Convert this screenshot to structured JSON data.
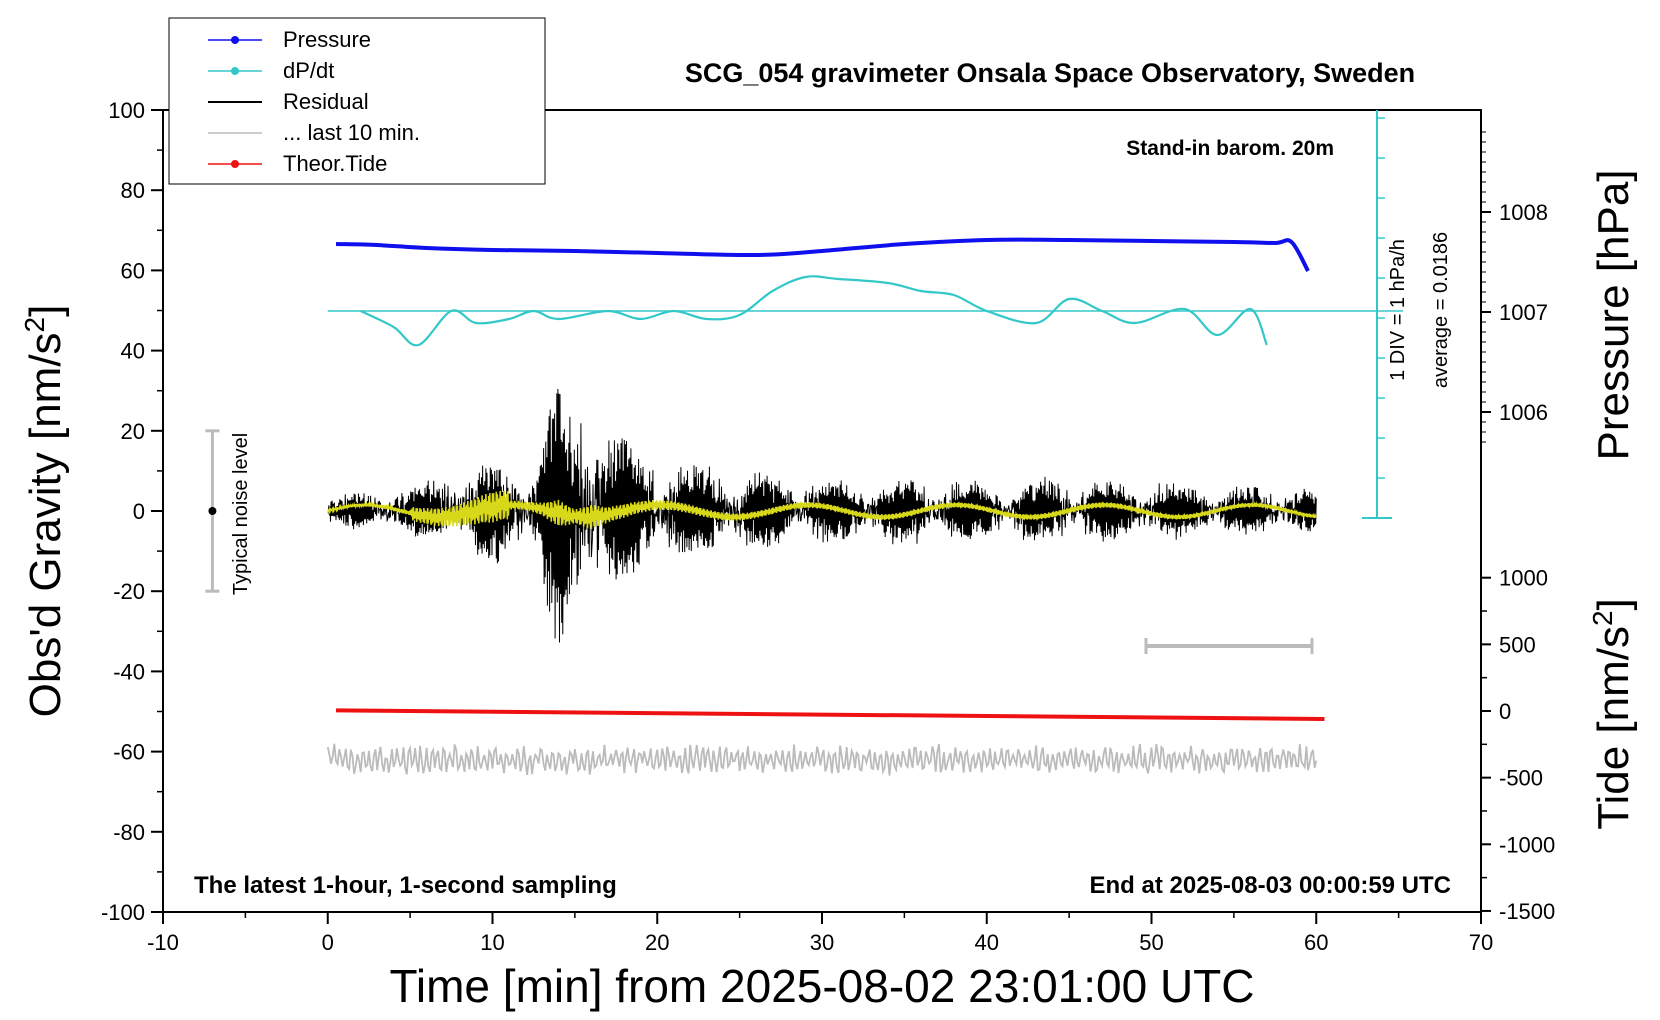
{
  "chart_data": {
    "type": "line",
    "title": "SCG_054 gravimeter Onsala Space Observatory, Sweden",
    "xlabel": "Time [min] from 2025-08-02 23:01:00 UTC",
    "ylabel_main": "Obs'd Gravity [nm/s",
    "ylabel_main_sup": "2",
    "ylabel_main_end": "]",
    "ylabel_pressure": "Pressure [hPa]",
    "ylabel_tide": "Tide [nm/s",
    "ylabel_tide_sup": "2",
    "ylabel_tide_end": "]",
    "xlim": [
      -10,
      70
    ],
    "ylim": [
      -100,
      100
    ],
    "x_ticks": [
      "-10",
      "0",
      "10",
      "20",
      "30",
      "40",
      "50",
      "60",
      "70"
    ],
    "y_ticks": [
      "100",
      "80",
      "60",
      "40",
      "20",
      "0",
      "-20",
      "-40",
      "-60",
      "-80",
      "-100"
    ],
    "pressure_ticks": [
      "1008",
      "1007",
      "1006"
    ],
    "tide_ticks": [
      "1000",
      "500",
      "0",
      "-500",
      "-1000",
      "-1500"
    ],
    "annotations": {
      "stand_in": "Stand-in barom. 20m",
      "bottom_left": "The latest 1-hour, 1-second sampling",
      "bottom_right": "End at 2025-08-03 00:00:59 UTC",
      "noise": "Typical noise level",
      "div_label": "1 DIV = 1 hPa/h",
      "average_label": "average = 0.0186"
    },
    "legend": [
      {
        "name": "Pressure",
        "color": "#1010ee"
      },
      {
        "name": "dP/dt",
        "color": "#33c8c8"
      },
      {
        "name": "Residual",
        "color": "#000000"
      },
      {
        "name": "... last 10 min.",
        "color": "#bbbbbb"
      },
      {
        "name": "Theor.Tide",
        "color": "#ee1111"
      }
    ],
    "series": [
      {
        "name": "Pressure",
        "unit": "hPa",
        "x": [
          0.5,
          3,
          6,
          10,
          15,
          20,
          26,
          30,
          35,
          40,
          45,
          50,
          55,
          57.5,
          58.5,
          59.5
        ],
        "values": [
          1007.68,
          1007.67,
          1007.64,
          1007.62,
          1007.61,
          1007.59,
          1007.57,
          1007.61,
          1007.68,
          1007.72,
          1007.72,
          1007.71,
          1007.7,
          1007.69,
          1007.7,
          1007.41
        ]
      },
      {
        "name": "dP/dt",
        "unit": "hPa/h",
        "x": [
          2,
          4,
          5.5,
          7.5,
          9,
          11,
          12.5,
          14,
          17,
          19,
          21,
          23,
          25,
          27,
          29,
          31,
          34,
          36,
          38,
          40,
          43,
          45,
          47,
          49,
          52,
          54,
          56,
          57
        ],
        "values": [
          0,
          -0.4,
          -0.85,
          0,
          -0.3,
          -0.2,
          0,
          -0.2,
          0,
          -0.2,
          0,
          -0.2,
          -0.1,
          0.5,
          0.85,
          0.8,
          0.7,
          0.5,
          0.4,
          0,
          -0.3,
          0.3,
          0,
          -0.3,
          0.05,
          -0.6,
          0.05,
          -0.85
        ]
      },
      {
        "name": "Residual",
        "unit": "nm/s2",
        "x": [
          0,
          5,
          8,
          10,
          12,
          13,
          14,
          15,
          16,
          17,
          20,
          25,
          30,
          35,
          40,
          45,
          50,
          55,
          60
        ],
        "amplitude": [
          3,
          6,
          10,
          14,
          12,
          18,
          38,
          20,
          35,
          22,
          14,
          10,
          8,
          8,
          7,
          8,
          7,
          6,
          5
        ]
      },
      {
        "name": "... last 10 min.",
        "unit": "nm/s2",
        "offset": -62,
        "x": [
          0,
          60
        ],
        "amplitude": [
          4,
          4
        ]
      },
      {
        "name": "Theor.Tide",
        "unit": "nm/s2",
        "x": [
          0.5,
          60.5
        ],
        "values": [
          5,
          -60
        ]
      }
    ],
    "noise_level": {
      "x": -7,
      "center": 0,
      "range": [
        -20,
        20
      ]
    },
    "grid": false,
    "legend_position": "top-left"
  }
}
